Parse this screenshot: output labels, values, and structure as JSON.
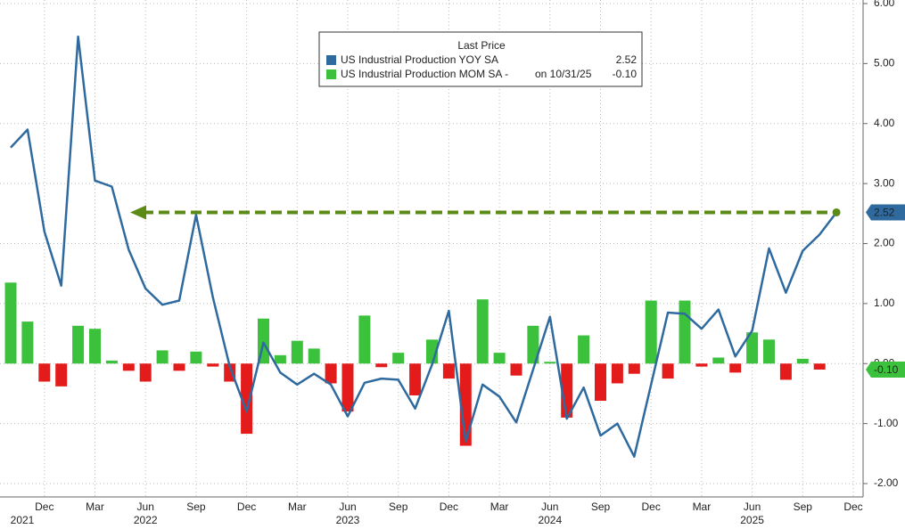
{
  "chart_data": {
    "type": "bar-line",
    "categories": [
      null,
      null,
      "Dec",
      null,
      null,
      "Mar",
      null,
      null,
      "Jun",
      null,
      null,
      "Sep",
      null,
      null,
      "Dec",
      null,
      null,
      "Mar",
      null,
      null,
      "Jun",
      null,
      null,
      "Sep",
      null,
      null,
      "Dec",
      null,
      null,
      "Mar",
      null,
      null,
      "Jun",
      null,
      null,
      "Sep",
      null,
      null,
      "Dec",
      null,
      null,
      "Mar",
      null,
      null,
      "Jun",
      null,
      null,
      "Sep",
      null,
      null,
      "Dec"
    ],
    "years": [
      "2021",
      "2022",
      "2023",
      "2024",
      "2025"
    ],
    "legend_title": "Last Price",
    "series": [
      {
        "name": "US Industrial Production YOY SA",
        "type": "line",
        "color": "#2f6a9f",
        "last_label": "2.52",
        "values": [
          3.6,
          3.9,
          2.2,
          1.3,
          5.45,
          3.05,
          2.95,
          1.9,
          1.25,
          0.98,
          1.05,
          2.48,
          1.1,
          -0.05,
          -0.8,
          0.35,
          -0.15,
          -0.35,
          -0.17,
          -0.35,
          -0.88,
          -0.32,
          -0.25,
          -0.27,
          -0.75,
          -0.02,
          0.88,
          -1.3,
          -0.35,
          -0.55,
          -0.98,
          -0.1,
          0.78,
          -0.92,
          -0.4,
          -1.2,
          -1.0,
          -1.55,
          -0.35,
          0.85,
          0.83,
          0.58,
          0.9,
          0.12,
          0.55,
          1.92,
          1.18,
          1.88,
          2.15,
          2.52,
          null
        ]
      },
      {
        "name": "US Industrial Production MOM SA -",
        "type": "bar",
        "color": "#3cc13c",
        "negative_color": "#e31b1b",
        "last_note": "on 10/31/25",
        "last_label": "-0.10",
        "values": [
          1.35,
          0.7,
          -0.3,
          -0.38,
          0.63,
          0.58,
          0.05,
          -0.12,
          -0.3,
          0.22,
          -0.12,
          0.2,
          -0.05,
          -0.3,
          -1.17,
          0.75,
          0.14,
          0.38,
          0.25,
          -0.33,
          -0.8,
          0.8,
          -0.06,
          0.18,
          -0.53,
          0.4,
          -0.25,
          -1.37,
          1.07,
          0.18,
          -0.2,
          0.63,
          0.03,
          -0.9,
          0.47,
          -0.62,
          -0.33,
          -0.17,
          1.05,
          -0.25,
          1.05,
          -0.05,
          0.1,
          -0.15,
          0.52,
          0.4,
          -0.27,
          0.08,
          -0.1,
          null,
          null
        ]
      }
    ],
    "reference_color": "#5b8a16",
    "ylim": [
      -2.3,
      6.05
    ],
    "yticks": [
      {
        "value": 6,
        "label": "6.00"
      },
      {
        "value": 5,
        "label": "5.00"
      },
      {
        "value": 4,
        "label": "4.00"
      },
      {
        "value": 3,
        "label": "3.00"
      },
      {
        "value": 2,
        "label": "2.00"
      },
      {
        "value": 1,
        "label": "1.00"
      },
      {
        "value": 0,
        "label": "0.00"
      },
      {
        "value": -1,
        "label": "-1.00"
      },
      {
        "value": -2,
        "label": "-2.00"
      }
    ],
    "grid": true
  }
}
